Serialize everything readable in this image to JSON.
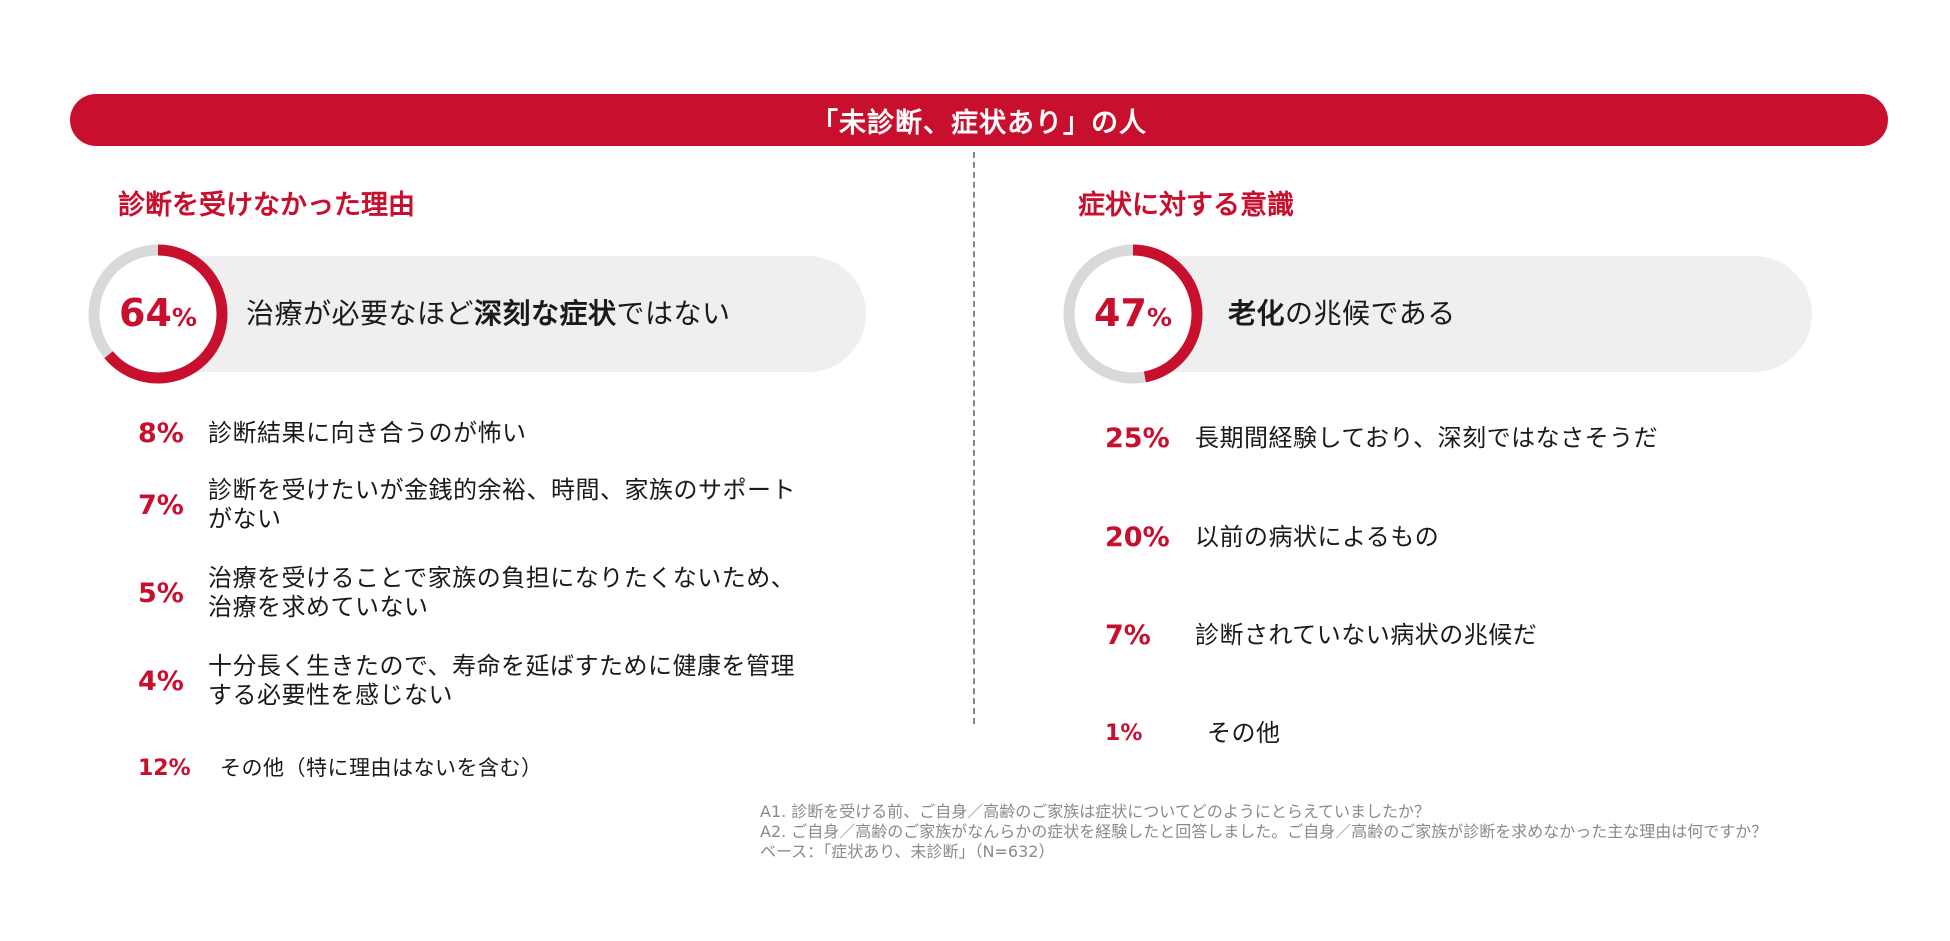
{
  "banner": "「未診断、症状あり」の人",
  "chart_data": [
    {
      "type": "bar",
      "title": "診断を受けなかった理由",
      "unit": "%",
      "top": {
        "value": 64,
        "label_parts": [
          {
            "text": "治療が必要なほど",
            "bold": false
          },
          {
            "text": "深刻な症状",
            "bold": true
          },
          {
            "text": "ではない",
            "bold": false
          }
        ]
      },
      "items": [
        {
          "value": 8,
          "label": "診断結果に向き合うのが怖い"
        },
        {
          "value": 7,
          "label": "診断を受けたいが金銭的余裕、時間、家族のサポート\nがない"
        },
        {
          "value": 5,
          "label": "治療を受けることで家族の負担になりたくないため、\n治療を求めていない"
        },
        {
          "value": 4,
          "label": "十分長く生きたので、寿命を延ばすために健康を管理\nする必要性を感じない"
        },
        {
          "value": 12,
          "label": "その他（特に理由はないを含む）"
        }
      ]
    },
    {
      "type": "bar",
      "title": "症状に対する意識",
      "unit": "%",
      "top": {
        "value": 47,
        "label_parts": [
          {
            "text": "老化",
            "bold": true
          },
          {
            "text": "の兆候である",
            "bold": false
          }
        ]
      },
      "items": [
        {
          "value": 25,
          "label": "長期間経験しており、深刻ではなさそうだ"
        },
        {
          "value": 20,
          "label": "以前の病状によるもの"
        },
        {
          "value": 7,
          "label": "診断されていない病状の兆候だ"
        },
        {
          "value": 1,
          "label": "その他"
        }
      ]
    }
  ],
  "notes": [
    "A1. 診断を受ける前、ご自身／高齢のご家族は症状についてどのようにとらえていましたか？",
    "A2. ご自身／高齢のご家族がなんらかの症状を経験したと回答しました。ご自身／高齢のご家族が診断を求めなかった主な理由は何ですか？",
    "ベース：「症状あり、未診断」（N=632）"
  ],
  "colors": {
    "accent": "#c8102e",
    "ring_track": "#d9d9d9",
    "pill": "#efefef",
    "note": "#8a8a8a"
  }
}
